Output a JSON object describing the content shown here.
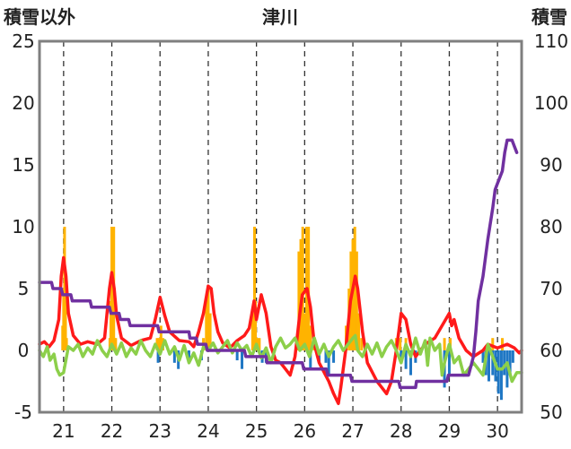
{
  "chart_data": {
    "type": "bar+line",
    "title": "津川",
    "ylabel_left": "積雪以外",
    "ylabel_right": "積雪",
    "left_axis": {
      "min": -5,
      "max": 25,
      "ticks": [
        "-5",
        "0",
        "5",
        "10",
        "15",
        "20",
        "25"
      ]
    },
    "right_axis": {
      "min": 50,
      "max": 110,
      "ticks": [
        "50",
        "60",
        "70",
        "80",
        "90",
        "100",
        "110"
      ]
    },
    "x_domain": [
      20.5,
      30.5
    ],
    "days": [
      "21",
      "22",
      "23",
      "24",
      "25",
      "26",
      "27",
      "28",
      "29",
      "30"
    ],
    "grid": "vertical dashed at day boundaries",
    "colors": {
      "precip_bar": "#ffb300",
      "neg_bar": "#1f77c4",
      "temperature": "#ff1a1a",
      "green_series": "#8ccf4a",
      "snow_depth": "#7030a0",
      "frame": "#7f7f7f"
    },
    "orange_bars": [
      [
        20.98,
        2
      ],
      [
        21.0,
        5
      ],
      [
        21.02,
        10
      ],
      [
        21.04,
        4
      ],
      [
        21.06,
        1
      ],
      [
        21.96,
        1
      ],
      [
        21.98,
        4
      ],
      [
        22.0,
        10
      ],
      [
        22.02,
        3
      ],
      [
        22.04,
        10
      ],
      [
        22.06,
        1
      ],
      [
        22.08,
        1
      ],
      [
        22.94,
        1
      ],
      [
        22.98,
        1
      ],
      [
        23.02,
        2
      ],
      [
        23.06,
        1
      ],
      [
        23.9,
        1
      ],
      [
        23.96,
        4
      ],
      [
        24.0,
        5
      ],
      [
        24.04,
        3
      ],
      [
        24.92,
        3
      ],
      [
        24.96,
        10
      ],
      [
        24.98,
        4
      ],
      [
        25.02,
        1
      ],
      [
        25.06,
        1
      ],
      [
        25.84,
        1
      ],
      [
        25.88,
        8
      ],
      [
        25.92,
        9
      ],
      [
        25.96,
        10
      ],
      [
        26.0,
        3
      ],
      [
        26.04,
        10
      ],
      [
        26.08,
        10
      ],
      [
        26.12,
        2
      ],
      [
        26.2,
        1
      ],
      [
        26.86,
        2
      ],
      [
        26.92,
        5
      ],
      [
        26.96,
        8
      ],
      [
        27.0,
        9
      ],
      [
        27.04,
        10
      ],
      [
        27.08,
        8
      ],
      [
        27.12,
        3
      ],
      [
        27.18,
        1
      ],
      [
        27.9,
        1
      ],
      [
        27.98,
        1
      ],
      [
        28.1,
        1
      ],
      [
        28.9,
        1
      ],
      [
        29.02,
        1
      ],
      [
        29.9,
        1
      ],
      [
        30.1,
        1
      ]
    ],
    "blue_bars": [
      [
        22.96,
        -1
      ],
      [
        23.3,
        -1
      ],
      [
        23.38,
        -1.5
      ],
      [
        23.6,
        -1
      ],
      [
        23.86,
        -0.8
      ],
      [
        24.6,
        -0.8
      ],
      [
        24.7,
        -1.5
      ],
      [
        25.12,
        -1
      ],
      [
        25.2,
        -1
      ],
      [
        26.12,
        -1.5
      ],
      [
        26.3,
        -1
      ],
      [
        26.44,
        -1
      ],
      [
        26.5,
        -2
      ],
      [
        26.6,
        -1
      ],
      [
        28.0,
        -1
      ],
      [
        28.1,
        -1.5
      ],
      [
        28.2,
        -2
      ],
      [
        28.3,
        -1
      ],
      [
        28.9,
        -3
      ],
      [
        29.0,
        -2
      ],
      [
        29.7,
        -1
      ],
      [
        29.76,
        -2
      ],
      [
        29.82,
        -2.5
      ],
      [
        29.9,
        -2
      ],
      [
        29.96,
        -2.5
      ],
      [
        30.02,
        -3.5
      ],
      [
        30.08,
        -4
      ],
      [
        30.14,
        -2
      ],
      [
        30.2,
        -3
      ],
      [
        30.26,
        -2
      ],
      [
        30.32,
        -1
      ]
    ],
    "series": [
      {
        "name": "temperature",
        "color": "#ff1a1a",
        "axis": "left",
        "points": [
          [
            20.5,
            0.5
          ],
          [
            20.6,
            0.7
          ],
          [
            20.7,
            0.3
          ],
          [
            20.8,
            0.8
          ],
          [
            20.9,
            2.5
          ],
          [
            20.95,
            6
          ],
          [
            21.0,
            7.5
          ],
          [
            21.05,
            6
          ],
          [
            21.1,
            3
          ],
          [
            21.2,
            1.2
          ],
          [
            21.35,
            0.5
          ],
          [
            21.5,
            0.7
          ],
          [
            21.7,
            0.5
          ],
          [
            21.85,
            1
          ],
          [
            21.95,
            5
          ],
          [
            22.0,
            6.3
          ],
          [
            22.05,
            5
          ],
          [
            22.1,
            2.8
          ],
          [
            22.2,
            1
          ],
          [
            22.4,
            0.4
          ],
          [
            22.6,
            0.8
          ],
          [
            22.8,
            1
          ],
          [
            22.9,
            2.5
          ],
          [
            23.0,
            4.3
          ],
          [
            23.1,
            2.8
          ],
          [
            23.2,
            1.5
          ],
          [
            23.4,
            0.8
          ],
          [
            23.6,
            0.7
          ],
          [
            23.7,
            0.3
          ],
          [
            23.8,
            1.5
          ],
          [
            23.9,
            3
          ],
          [
            24.0,
            5.2
          ],
          [
            24.06,
            5
          ],
          [
            24.12,
            3
          ],
          [
            24.2,
            1.5
          ],
          [
            24.3,
            0.6
          ],
          [
            24.45,
            0.2
          ],
          [
            24.6,
            0.8
          ],
          [
            24.75,
            1.2
          ],
          [
            24.85,
            1.8
          ],
          [
            24.95,
            4
          ],
          [
            25.0,
            2.5
          ],
          [
            25.1,
            4.5
          ],
          [
            25.2,
            3
          ],
          [
            25.3,
            0.3
          ],
          [
            25.4,
            -0.8
          ],
          [
            25.5,
            -1
          ],
          [
            25.6,
            -1.5
          ],
          [
            25.7,
            -2
          ],
          [
            25.8,
            -0.5
          ],
          [
            25.9,
            3
          ],
          [
            25.95,
            4.5
          ],
          [
            26.05,
            5
          ],
          [
            26.12,
            3.5
          ],
          [
            26.2,
            0.5
          ],
          [
            26.3,
            -1
          ],
          [
            26.5,
            -2.5
          ],
          [
            26.6,
            -3.5
          ],
          [
            26.7,
            -4.3
          ],
          [
            26.75,
            -3
          ],
          [
            26.85,
            0
          ],
          [
            26.95,
            4
          ],
          [
            27.05,
            6
          ],
          [
            27.1,
            5
          ],
          [
            27.2,
            1.5
          ],
          [
            27.3,
            -1
          ],
          [
            27.5,
            -2.5
          ],
          [
            27.6,
            -3
          ],
          [
            27.7,
            -3.5
          ],
          [
            27.8,
            -2.5
          ],
          [
            27.9,
            0
          ],
          [
            28.0,
            3
          ],
          [
            28.1,
            2.5
          ],
          [
            28.2,
            0.5
          ],
          [
            28.3,
            -0.5
          ],
          [
            28.5,
            0.5
          ],
          [
            28.7,
            1
          ],
          [
            28.85,
            2
          ],
          [
            29.0,
            3
          ],
          [
            29.05,
            2
          ],
          [
            29.1,
            2.5
          ],
          [
            29.2,
            1
          ],
          [
            29.35,
            0
          ],
          [
            29.5,
            -0.5
          ],
          [
            29.7,
            0
          ],
          [
            29.8,
            0.5
          ],
          [
            30.0,
            0.2
          ],
          [
            30.2,
            0.5
          ],
          [
            30.35,
            0.2
          ],
          [
            30.45,
            -0.2
          ],
          [
            30.5,
            0
          ]
        ]
      },
      {
        "name": "green",
        "color": "#8ccf4a",
        "axis": "left",
        "points": [
          [
            20.5,
            0
          ],
          [
            20.58,
            -0.5
          ],
          [
            20.66,
            0.3
          ],
          [
            20.72,
            -0.8
          ],
          [
            20.8,
            -0.3
          ],
          [
            20.86,
            -1.5
          ],
          [
            20.92,
            -2
          ],
          [
            21.0,
            -1.8
          ],
          [
            21.1,
            0.3
          ],
          [
            21.2,
            0
          ],
          [
            21.3,
            0.5
          ],
          [
            21.4,
            -0.5
          ],
          [
            21.5,
            0.2
          ],
          [
            21.6,
            -0.3
          ],
          [
            21.7,
            0.8
          ],
          [
            21.8,
            0
          ],
          [
            21.9,
            -0.5
          ],
          [
            22.0,
            0.5
          ],
          [
            22.1,
            -0.3
          ],
          [
            22.2,
            0.6
          ],
          [
            22.3,
            -0.5
          ],
          [
            22.4,
            0.2
          ],
          [
            22.5,
            -0.3
          ],
          [
            22.6,
            0.8
          ],
          [
            22.7,
            0
          ],
          [
            22.8,
            -0.5
          ],
          [
            22.9,
            0.5
          ],
          [
            23.0,
            -0.3
          ],
          [
            23.1,
            0.8
          ],
          [
            23.2,
            -0.3
          ],
          [
            23.3,
            0.3
          ],
          [
            23.4,
            -0.8
          ],
          [
            23.5,
            0.4
          ],
          [
            23.6,
            -1
          ],
          [
            23.7,
            -0.2
          ],
          [
            23.8,
            -1.2
          ],
          [
            23.9,
            0.3
          ],
          [
            24.0,
            0
          ],
          [
            24.1,
            0.6
          ],
          [
            24.2,
            -0.2
          ],
          [
            24.3,
            0.3
          ],
          [
            24.4,
            0.8
          ],
          [
            24.5,
            -0.2
          ],
          [
            24.6,
            0.6
          ],
          [
            24.7,
            0
          ],
          [
            24.8,
            0.4
          ],
          [
            24.9,
            -0.5
          ],
          [
            25.0,
            0.5
          ],
          [
            25.1,
            -0.6
          ],
          [
            25.2,
            0.2
          ],
          [
            25.3,
            -1
          ],
          [
            25.4,
            0.3
          ],
          [
            25.5,
            1
          ],
          [
            25.6,
            0.2
          ],
          [
            25.7,
            0.5
          ],
          [
            25.8,
            1
          ],
          [
            25.9,
            0
          ],
          [
            26.0,
            0.5
          ],
          [
            26.1,
            -0.5
          ],
          [
            26.2,
            1
          ],
          [
            26.3,
            -0.3
          ],
          [
            26.4,
            0.5
          ],
          [
            26.5,
            -0.5
          ],
          [
            26.6,
            0.3
          ],
          [
            26.7,
            0.8
          ],
          [
            26.8,
            0
          ],
          [
            26.9,
            0.5
          ],
          [
            27.0,
            1
          ],
          [
            27.05,
            1.2
          ],
          [
            27.1,
            0
          ],
          [
            27.2,
            -0.5
          ],
          [
            27.3,
            0.5
          ],
          [
            27.4,
            -0.3
          ],
          [
            27.5,
            0.6
          ],
          [
            27.6,
            -0.5
          ],
          [
            27.7,
            0.3
          ],
          [
            27.8,
            0.8
          ],
          [
            27.9,
            0
          ],
          [
            28.0,
            -1
          ],
          [
            28.1,
            0.5
          ],
          [
            28.2,
            -0.5
          ],
          [
            28.3,
            1
          ],
          [
            28.4,
            -0.3
          ],
          [
            28.5,
            0.8
          ],
          [
            28.55,
            -1.2
          ],
          [
            28.6,
            1
          ],
          [
            28.7,
            0
          ],
          [
            28.8,
            0.5
          ],
          [
            28.85,
            -2
          ],
          [
            28.9,
            -1
          ],
          [
            29.0,
            0.5
          ],
          [
            29.1,
            -1
          ],
          [
            29.2,
            -0.5
          ],
          [
            29.3,
            -2
          ],
          [
            29.4,
            -1.5
          ],
          [
            29.5,
            -1
          ],
          [
            29.6,
            -1.5
          ],
          [
            29.7,
            -2
          ],
          [
            29.8,
            0.5
          ],
          [
            29.9,
            -0.5
          ],
          [
            30.0,
            -1.5
          ],
          [
            30.1,
            -1.5
          ],
          [
            30.2,
            -1
          ],
          [
            30.3,
            -2.5
          ],
          [
            30.4,
            -1.8
          ],
          [
            30.5,
            -1.8
          ]
        ]
      },
      {
        "name": "snow_depth",
        "color": "#7030a0",
        "axis": "right",
        "points": [
          [
            20.5,
            71
          ],
          [
            20.75,
            71
          ],
          [
            20.78,
            70
          ],
          [
            20.95,
            70
          ],
          [
            20.98,
            69
          ],
          [
            21.15,
            69
          ],
          [
            21.18,
            68
          ],
          [
            21.55,
            68
          ],
          [
            21.58,
            67
          ],
          [
            21.95,
            67
          ],
          [
            21.98,
            66
          ],
          [
            22.15,
            66
          ],
          [
            22.18,
            65
          ],
          [
            22.35,
            65
          ],
          [
            22.38,
            64
          ],
          [
            22.95,
            64
          ],
          [
            22.98,
            63
          ],
          [
            23.6,
            63
          ],
          [
            23.62,
            62
          ],
          [
            23.75,
            62
          ],
          [
            23.78,
            61
          ],
          [
            23.95,
            61
          ],
          [
            23.98,
            60
          ],
          [
            24.75,
            60
          ],
          [
            24.78,
            59
          ],
          [
            25.2,
            59
          ],
          [
            25.22,
            58
          ],
          [
            25.95,
            58
          ],
          [
            25.98,
            57
          ],
          [
            26.45,
            57
          ],
          [
            26.48,
            56
          ],
          [
            26.95,
            56
          ],
          [
            26.98,
            55
          ],
          [
            27.95,
            55
          ],
          [
            27.98,
            54
          ],
          [
            28.3,
            54
          ],
          [
            28.32,
            55
          ],
          [
            28.95,
            55
          ],
          [
            28.98,
            56
          ],
          [
            29.4,
            56
          ],
          [
            29.5,
            59
          ],
          [
            29.55,
            63
          ],
          [
            29.6,
            68
          ],
          [
            29.7,
            72
          ],
          [
            29.8,
            78
          ],
          [
            29.9,
            83
          ],
          [
            29.95,
            86
          ],
          [
            30.0,
            87
          ],
          [
            30.05,
            88
          ],
          [
            30.1,
            89
          ],
          [
            30.15,
            92
          ],
          [
            30.2,
            94
          ],
          [
            30.3,
            94
          ],
          [
            30.35,
            93
          ],
          [
            30.4,
            92
          ]
        ]
      }
    ]
  }
}
